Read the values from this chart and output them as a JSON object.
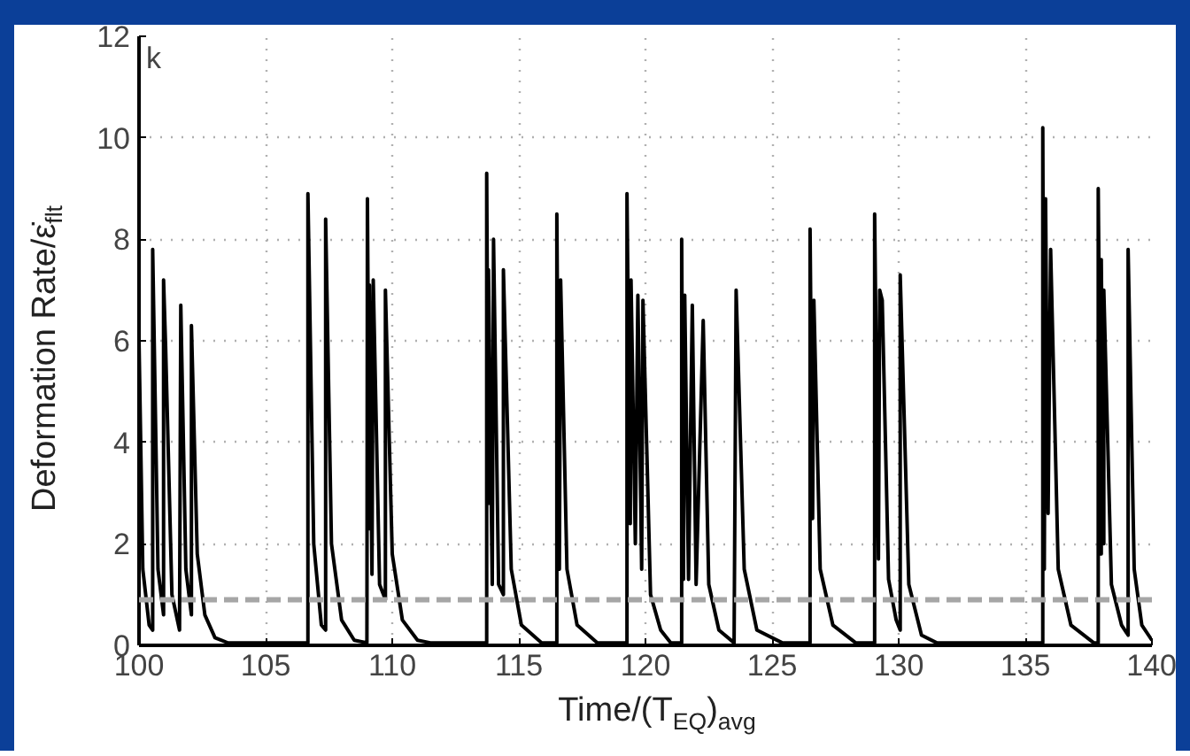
{
  "chart_data": {
    "type": "line",
    "xlabel": "Time/(T$_{EQ}$)$_{avg}$",
    "ylabel": "Deformation Rate/ε̇$_{flt}$",
    "annotations": [
      "k"
    ],
    "series": [
      {
        "color": "#000000",
        "x": [
          100.0,
          100.15,
          100.4,
          100.54,
          100.54,
          100.75,
          100.97,
          100.97,
          101.05,
          101.3,
          101.6,
          101.65,
          101.85,
          102.07,
          102.07,
          102.3,
          102.6,
          103.0,
          103.5,
          106.67,
          106.67,
          106.9,
          107.2,
          107.37,
          107.37,
          107.6,
          108.0,
          108.5,
          109.0,
          109.02,
          109.1,
          109.1,
          109.2,
          109.25,
          109.5,
          109.73,
          109.73,
          110.0,
          110.4,
          111.0,
          111.5,
          113.73,
          113.73,
          113.8,
          113.8,
          113.95,
          114.0,
          114.2,
          114.39,
          114.39,
          114.7,
          115.1,
          115.9,
          116.5,
          116.5,
          116.6,
          116.65,
          116.9,
          117.3,
          118.1,
          119.27,
          119.27,
          119.4,
          119.43,
          119.6,
          119.7,
          119.85,
          119.9,
          120.2,
          120.6,
          121.0,
          121.43,
          121.43,
          121.5,
          121.55,
          121.7,
          121.85,
          122.0,
          122.28,
          122.5,
          122.9,
          123.5,
          123.58,
          123.9,
          124.4,
          125.4,
          126.5,
          126.5,
          126.6,
          126.65,
          126.9,
          127.4,
          128.3,
          129.05,
          129.05,
          129.2,
          129.25,
          129.35,
          129.6,
          129.9,
          130.06,
          130.06,
          130.4,
          130.9,
          131.5,
          135.69,
          135.69,
          135.75,
          135.8,
          135.9,
          136.0,
          136.3,
          136.8,
          137.7,
          137.88,
          137.88,
          138.0,
          138.0,
          138.1,
          138.1,
          138.4,
          138.8,
          139.06,
          139.06,
          139.3,
          139.6,
          140.0
        ],
        "values": [
          6.0,
          1.5,
          0.4,
          0.3,
          7.8,
          1.5,
          0.6,
          7.2,
          5.9,
          1.0,
          0.3,
          6.7,
          1.5,
          0.6,
          6.3,
          1.8,
          0.6,
          0.15,
          0.05,
          0.05,
          8.9,
          2.0,
          0.4,
          0.3,
          8.4,
          2.0,
          0.5,
          0.1,
          0.05,
          8.8,
          2.3,
          7.1,
          1.4,
          7.2,
          1.2,
          0.9,
          7.0,
          1.8,
          0.5,
          0.1,
          0.05,
          0.05,
          9.3,
          2.8,
          7.4,
          1.2,
          8.0,
          1.2,
          1.0,
          7.4,
          1.5,
          0.4,
          0.05,
          0.05,
          8.5,
          1.5,
          7.2,
          1.5,
          0.4,
          0.05,
          0.05,
          8.9,
          2.4,
          7.2,
          2.0,
          6.9,
          1.5,
          6.8,
          1.0,
          0.3,
          0.05,
          0.05,
          8.0,
          1.3,
          6.9,
          1.3,
          6.7,
          1.2,
          6.4,
          1.2,
          0.3,
          0.05,
          7.0,
          1.5,
          0.3,
          0.05,
          0.05,
          8.2,
          2.5,
          6.8,
          1.5,
          0.4,
          0.05,
          0.05,
          8.5,
          1.7,
          7.0,
          6.8,
          1.3,
          0.5,
          0.3,
          7.3,
          1.2,
          0.2,
          0.05,
          0.05,
          10.2,
          1.5,
          8.8,
          2.6,
          7.8,
          1.5,
          0.4,
          0.05,
          0.05,
          9.0,
          1.8,
          7.6,
          2.0,
          7.0,
          1.2,
          0.4,
          0.2,
          7.8,
          1.5,
          0.4,
          0.1
        ]
      }
    ],
    "ref_lines": [
      {
        "axis": "y",
        "value": 0.9,
        "color": "#a6a6a6",
        "line_style": "dashed"
      }
    ],
    "xlim": [
      100,
      140
    ],
    "ylim": [
      0,
      12
    ],
    "xticks": [
      100,
      105,
      110,
      115,
      120,
      125,
      130,
      135,
      140
    ],
    "yticks": [
      0,
      2,
      4,
      6,
      8,
      10,
      12
    ],
    "grid": true,
    "marker": "none",
    "line_style": "solid"
  }
}
